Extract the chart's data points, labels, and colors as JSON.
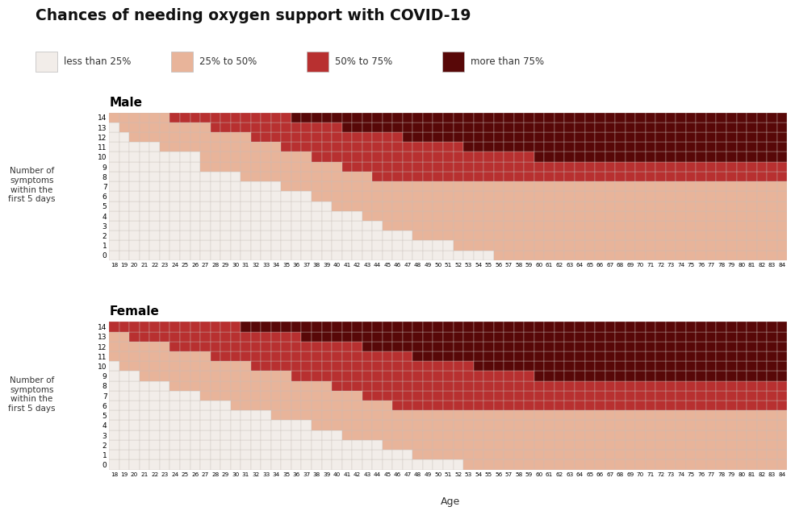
{
  "title": "Chances of needing oxygen support with COVID-19",
  "legend_labels": [
    "less than 25%",
    "25% to 50%",
    "50% to 75%",
    "more than 75%"
  ],
  "legend_colors": [
    "#f2ede9",
    "#e8b49a",
    "#b83030",
    "#580808"
  ],
  "colors": {
    "white": "#f2ede9",
    "salmon": "#e8b49a",
    "red": "#b83030",
    "darkred": "#580808"
  },
  "ages": [
    18,
    19,
    20,
    21,
    22,
    23,
    24,
    25,
    26,
    27,
    28,
    29,
    30,
    31,
    32,
    33,
    34,
    35,
    36,
    37,
    38,
    39,
    40,
    41,
    42,
    43,
    44,
    45,
    46,
    47,
    48,
    49,
    50,
    51,
    52,
    53,
    54,
    55,
    56,
    57,
    58,
    59,
    60,
    61,
    62,
    63,
    64,
    65,
    66,
    67,
    68,
    69,
    70,
    71,
    72,
    73,
    74,
    75,
    76,
    77,
    78,
    79,
    80,
    81,
    82,
    83,
    84
  ],
  "symptoms": [
    0,
    1,
    2,
    3,
    4,
    5,
    6,
    7,
    8,
    9,
    10,
    11,
    12,
    13,
    14
  ],
  "ylabel": "Number of\nsymptoms\nwithin the\nfirst 5 days",
  "xlabel": "Age",
  "male_title": "Male",
  "female_title": "Female",
  "background_color": "#ffffff",
  "grid_color": "#c8bfba",
  "male_white_salmon": [
    56,
    52,
    48,
    45,
    43,
    40,
    38,
    35,
    31,
    27,
    27,
    23,
    20,
    19,
    18
  ],
  "male_salmon_red": [
    999,
    999,
    999,
    999,
    999,
    999,
    999,
    999,
    44,
    41,
    38,
    35,
    32,
    28,
    24
  ],
  "male_red_dark": [
    999,
    999,
    999,
    999,
    999,
    999,
    999,
    999,
    999,
    999,
    60,
    53,
    47,
    41,
    36
  ],
  "female_white_salmon": [
    53,
    48,
    45,
    41,
    38,
    34,
    30,
    27,
    24,
    21,
    19,
    18,
    18,
    18,
    18
  ],
  "female_salmon_red": [
    999,
    999,
    999,
    999,
    999,
    999,
    46,
    43,
    40,
    36,
    32,
    28,
    24,
    20,
    18
  ],
  "female_red_dark": [
    999,
    999,
    999,
    999,
    999,
    999,
    999,
    999,
    999,
    60,
    54,
    48,
    43,
    37,
    31
  ]
}
